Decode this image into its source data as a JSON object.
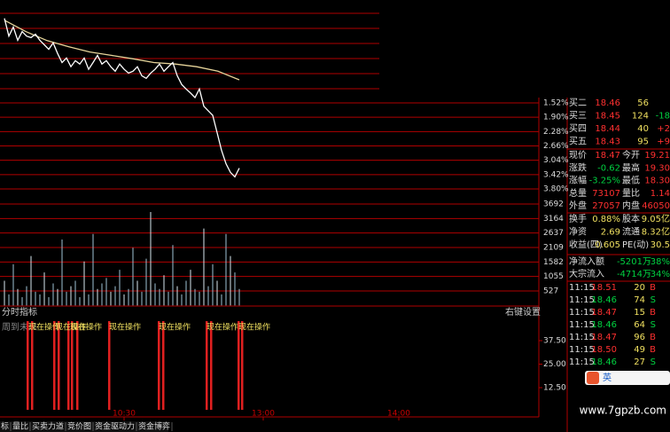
{
  "price_chart": {
    "yticks": [
      {
        "value": 1.52,
        "label": "1.52%"
      },
      {
        "value": 1.9,
        "label": "1.90%"
      },
      {
        "value": 2.28,
        "label": "2.28%"
      },
      {
        "value": 2.66,
        "label": "2.66%"
      },
      {
        "value": 3.04,
        "label": "3.04%"
      },
      {
        "value": 3.42,
        "label": "3.42%"
      },
      {
        "value": 3.8,
        "label": "3.80%"
      }
    ],
    "price_line": [
      -0.72,
      -0.25,
      -0.49,
      -0.14,
      -0.37,
      -0.25,
      -0.21,
      -0.3,
      -0.14,
      -0.02,
      0.1,
      -0.07,
      0.21,
      0.45,
      0.33,
      0.56,
      0.4,
      0.49,
      0.33,
      0.63,
      0.45,
      0.26,
      0.49,
      0.4,
      0.56,
      0.68,
      0.49,
      0.63,
      0.73,
      0.68,
      0.56,
      0.8,
      0.87,
      0.73,
      0.63,
      0.49,
      0.68,
      0.56,
      0.45,
      0.8,
      1.03,
      1.15,
      1.26,
      1.38,
      1.15,
      1.61,
      1.73,
      1.85,
      2.31,
      2.78,
      3.13,
      3.36,
      3.48,
      3.25
    ],
    "avg_line": [
      -0.67,
      -0.37,
      -0.13,
      0.03,
      0.17,
      0.26,
      0.35,
      0.45,
      0.49,
      0.56,
      0.68,
      0.91
    ]
  },
  "volume_chart": {
    "yticks": [
      3692,
      3164,
      2637,
      2109,
      1582,
      1055,
      527
    ],
    "bars": [
      900,
      400,
      1500,
      600,
      300,
      700,
      1800,
      500,
      400,
      1200,
      300,
      800,
      600,
      2400,
      500,
      700,
      900,
      300,
      1600,
      400,
      2600,
      600,
      800,
      1000,
      500,
      700,
      1300,
      400,
      600,
      2100,
      900,
      500,
      1700,
      3400,
      800,
      600,
      1100,
      500,
      2200,
      700,
      400,
      900,
      1300,
      600,
      500,
      2800,
      700,
      1500,
      900,
      400,
      2600,
      1800,
      1200,
      600
    ]
  },
  "indicator": {
    "title": "分时指标",
    "settings": "右键设置",
    "legend": "周到未来",
    "signal_label": "现在操作",
    "yticks": [
      {
        "value": 37.5,
        "label": "37.50"
      },
      {
        "value": 25,
        "label": "25.00"
      },
      {
        "value": 12.5,
        "label": "12.50"
      }
    ]
  },
  "time_axis": [
    "10:30",
    "13:00",
    "14:00"
  ],
  "tabs": [
    "标",
    "量比",
    "买卖力道",
    "竞价图",
    "资金驱动力",
    "资金博弈"
  ],
  "quote": {
    "bids": [
      [
        "买二",
        "18.46",
        "56"
      ],
      [
        "买三",
        "18.45",
        "124",
        "-18"
      ],
      [
        "买四",
        "18.44",
        "40",
        "+2"
      ],
      [
        "买五",
        "18.43",
        "95",
        "+9"
      ]
    ],
    "stats": [
      [
        "现价",
        "18.47",
        "今开",
        "19.21"
      ],
      [
        "涨跌",
        "-0.62",
        "最高",
        "19.30"
      ],
      [
        "涨幅",
        "-3.25%",
        "最低",
        "18.30"
      ],
      [
        "总量",
        "73107",
        "量比",
        "1.14"
      ],
      [
        "外盘",
        "27057",
        "内盘",
        "46050"
      ]
    ],
    "finance": [
      [
        "换手",
        "0.88%",
        "股本",
        "9.05亿"
      ],
      [
        "净资",
        "2.69",
        "流通",
        "8.32亿"
      ],
      [
        "收益(四)",
        "0.605",
        "PE(动)",
        "30.5"
      ]
    ],
    "flows": [
      [
        "净流入额",
        "-5201万",
        "-38%"
      ],
      [
        "大宗流入",
        "-4714万",
        "-34%"
      ]
    ],
    "ticks": [
      [
        "11:15",
        "18.51",
        "20",
        "B"
      ],
      [
        "11:15",
        "18.46",
        "74",
        "S"
      ],
      [
        "11:15",
        "18.47",
        "15",
        "B"
      ],
      [
        "11:15",
        "18.46",
        "64",
        "S"
      ],
      [
        "11:15",
        "18.47",
        "96",
        "B"
      ],
      [
        "11:15",
        "18.50",
        "49",
        "B"
      ],
      [
        "11:15",
        "18.46",
        "27",
        "S"
      ]
    ]
  },
  "ime": "英",
  "watermark": "www.7gpzb.com"
}
